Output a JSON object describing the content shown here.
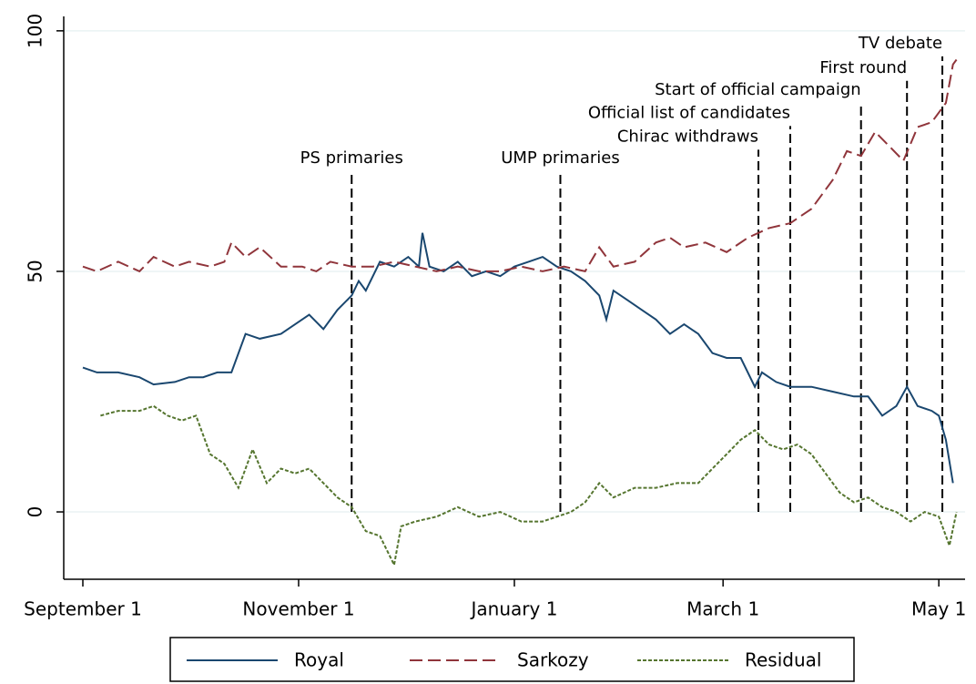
{
  "chart_data": {
    "type": "line",
    "xlim": [
      -5,
      250
    ],
    "ylim": [
      -14,
      103
    ],
    "xticks": [
      {
        "value": 0,
        "label": "September 1"
      },
      {
        "value": 61,
        "label": "November 1"
      },
      {
        "value": 122,
        "label": "January 1"
      },
      {
        "value": 181,
        "label": "March 1"
      },
      {
        "value": 242,
        "label": "May 1"
      }
    ],
    "yticks": [
      0,
      50,
      100
    ],
    "grid": true,
    "legend": "bottom",
    "series": [
      {
        "name": "Royal",
        "color": "#1a476f",
        "dash": "solid",
        "x": [
          0,
          4,
          10,
          16,
          20,
          26,
          30,
          34,
          38,
          42,
          46,
          50,
          56,
          60,
          64,
          68,
          72,
          76,
          78,
          80,
          84,
          88,
          92,
          95,
          96,
          98,
          102,
          106,
          110,
          114,
          118,
          122,
          126,
          130,
          134,
          138,
          142,
          146,
          148,
          150,
          154,
          158,
          162,
          166,
          170,
          174,
          178,
          182,
          186,
          190,
          192,
          196,
          200,
          206,
          212,
          218,
          222,
          226,
          230,
          233,
          236,
          240,
          242,
          244,
          246
        ],
        "values": [
          30,
          29,
          29,
          28,
          26.5,
          27,
          28,
          28,
          29,
          29,
          37,
          36,
          37,
          39,
          41,
          38,
          42,
          45,
          48,
          46,
          52,
          51,
          53,
          51,
          58,
          51,
          50,
          52,
          49,
          50,
          49,
          51,
          52,
          53,
          51,
          50,
          48,
          45,
          40,
          46,
          44,
          42,
          40,
          37,
          39,
          37,
          33,
          32,
          32,
          26,
          29,
          27,
          26,
          26,
          25,
          24,
          24,
          20,
          22,
          26,
          22,
          21,
          20,
          15,
          6
        ]
      },
      {
        "name": "Sarkozy",
        "color": "#90353b",
        "dash": "long",
        "x": [
          0,
          4,
          10,
          16,
          20,
          26,
          30,
          36,
          40,
          42,
          46,
          50,
          56,
          62,
          66,
          70,
          76,
          82,
          88,
          94,
          100,
          106,
          112,
          118,
          124,
          130,
          136,
          142,
          146,
          150,
          156,
          162,
          166,
          170,
          176,
          182,
          188,
          194,
          200,
          206,
          212,
          216,
          220,
          224,
          228,
          232,
          236,
          240,
          244,
          246,
          247
        ],
        "values": [
          51,
          50,
          52,
          50,
          53,
          51,
          52,
          51,
          52,
          56,
          53,
          55,
          51,
          51,
          50,
          52,
          51,
          51,
          52,
          51,
          50,
          51,
          50,
          50,
          51,
          50,
          51,
          50,
          55,
          51,
          52,
          56,
          57,
          55,
          56,
          54,
          57,
          59,
          60,
          63,
          69,
          75,
          74,
          79,
          76,
          73,
          80,
          81,
          85,
          93,
          94
        ]
      },
      {
        "name": "Residual",
        "color": "#55752f",
        "dash": "short",
        "x": [
          5,
          10,
          16,
          20,
          24,
          28,
          32,
          36,
          40,
          44,
          48,
          52,
          56,
          60,
          64,
          68,
          72,
          76,
          80,
          84,
          88,
          90,
          94,
          100,
          106,
          112,
          118,
          124,
          130,
          134,
          138,
          142,
          146,
          150,
          156,
          162,
          168,
          174,
          178,
          182,
          186,
          190,
          194,
          198,
          202,
          206,
          210,
          214,
          218,
          222,
          226,
          230,
          234,
          238,
          242,
          245,
          247
        ],
        "values": [
          20,
          21,
          21,
          22,
          20,
          19,
          20,
          12,
          10,
          5,
          13,
          6,
          9,
          8,
          9,
          6,
          3,
          1,
          -4,
          -5,
          -11,
          -3,
          -2,
          -1,
          1,
          -1,
          0,
          -2,
          -2,
          -1,
          0,
          2,
          6,
          3,
          5,
          5,
          6,
          6,
          9,
          12,
          15,
          17,
          14,
          13,
          14,
          12,
          8,
          4,
          2,
          3,
          1,
          0,
          -2,
          0,
          -1,
          -7,
          0
        ]
      }
    ],
    "annotations": [
      {
        "label": "PS primaries",
        "x": 76,
        "top": 70.8
      },
      {
        "label": "UMP primaries",
        "x": 135,
        "top": 70.8
      },
      {
        "label": "Chirac withdraws",
        "x": 191,
        "top": 75.3
      },
      {
        "label": "Official list of candidates",
        "x": 200,
        "top": 80.2
      },
      {
        "label": "Start of official campaign",
        "x": 220,
        "top": 85
      },
      {
        "label": "First round",
        "x": 233,
        "top": 89.6
      },
      {
        "label": "TV debate",
        "x": 243,
        "top": 94.7
      }
    ]
  }
}
